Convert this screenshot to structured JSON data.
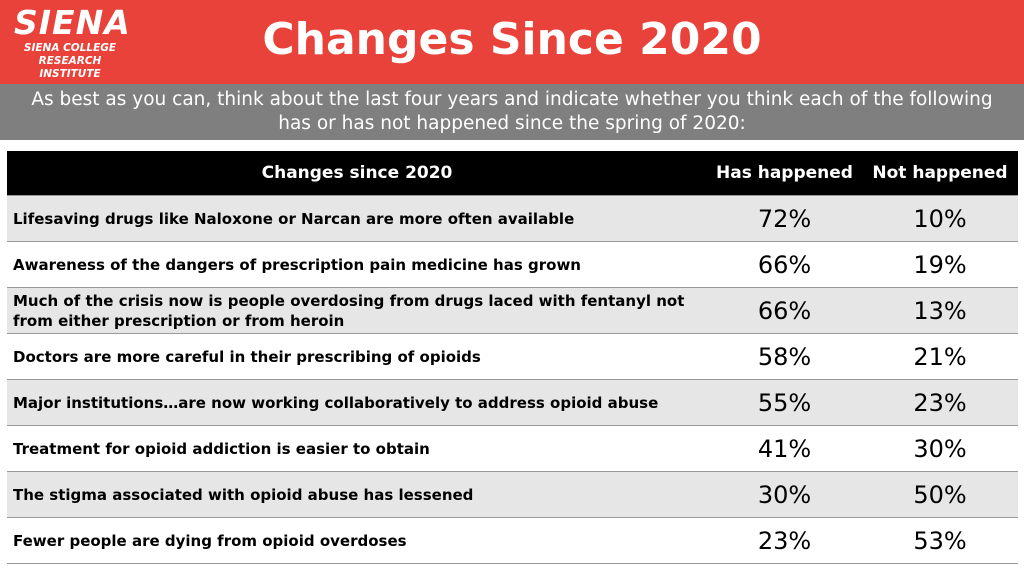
{
  "logo": {
    "main": "SIENA",
    "line1": "SIENA COLLEGE",
    "line2": "RESEARCH INSTITUTE"
  },
  "title": "Changes Since 2020",
  "question": "As best as you can, think about the last four years and indicate whether you think each of the following has or has not happened since the spring of 2020:",
  "colors": {
    "header_red": "#e8423a",
    "subbar_gray": "#7f7f7f",
    "table_header": "#000000",
    "row_alt": "#e6e6e6"
  },
  "table": {
    "headers": [
      "Changes since 2020",
      "Has happened",
      "Not happened"
    ],
    "rows": [
      {
        "item": "Lifesaving drugs like Naloxone or Narcan are more often available",
        "has": "72%",
        "not": "10%"
      },
      {
        "item": "Awareness of the dangers of prescription pain medicine has grown",
        "has": "66%",
        "not": "19%"
      },
      {
        "item": "Much of the crisis now is people overdosing from drugs laced with fentanyl not from either prescription or from heroin",
        "has": "66%",
        "not": "13%"
      },
      {
        "item": "Doctors are more careful in their prescribing of opioids",
        "has": "58%",
        "not": "21%"
      },
      {
        "item": "Major institutions…are now working collaboratively to address opioid abuse",
        "has": "55%",
        "not": "23%"
      },
      {
        "item": "Treatment for opioid addiction is easier to obtain",
        "has": "41%",
        "not": "30%"
      },
      {
        "item": "The stigma associated with opioid abuse has lessened",
        "has": "30%",
        "not": "50%"
      },
      {
        "item": "Fewer people are dying from opioid overdoses",
        "has": "23%",
        "not": "53%"
      }
    ]
  }
}
